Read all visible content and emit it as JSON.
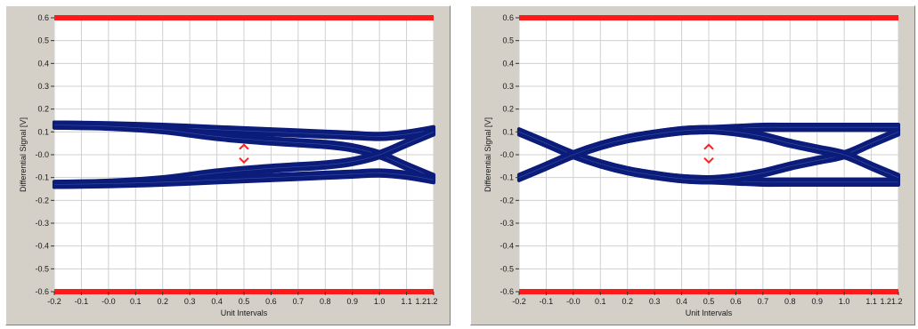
{
  "chart_data": [
    {
      "type": "line",
      "title": "",
      "xlabel": "Unit Intervals",
      "ylabel": "Differential Signal  [V]",
      "xlim": [
        -0.2,
        1.2
      ],
      "ylim": [
        -0.6,
        0.6
      ],
      "grid": true,
      "x_ticks": [
        -0.2,
        -0.1,
        0.0,
        0.1,
        0.2,
        0.3,
        0.4,
        0.5,
        0.6,
        0.7,
        0.8,
        0.9,
        1.0,
        1.1,
        1.2
      ],
      "x_tick_labels": [
        "-0.2",
        "-0.1",
        "-0.0",
        "0.1",
        "0.2",
        "0.3",
        "0.4",
        "0.5",
        "0.6",
        "0.7",
        "0.8",
        "0.9",
        "1.0",
        "1.1",
        "1.21.2"
      ],
      "y_ticks": [
        0.6,
        0.5,
        0.4,
        0.3,
        0.2,
        0.1,
        0.0,
        -0.1,
        -0.2,
        -0.3,
        -0.4,
        -0.5,
        -0.6
      ],
      "y_tick_labels": [
        "0.6",
        "0.5",
        "0.4",
        "0.3",
        "0.2",
        "0.1",
        "-0.0",
        "-0.1",
        "-0.2",
        "-0.3",
        "-0.4",
        "-0.5",
        "-0.6"
      ],
      "limit_lines": [
        0.6,
        -0.6
      ],
      "eye_center": {
        "x": 0.5,
        "upper": 0.04,
        "lower": -0.03
      },
      "series": [
        {
          "x": [
            -0.2,
            0.0,
            0.2,
            0.4,
            0.6,
            0.8,
            0.9,
            1.0,
            1.1,
            1.2
          ],
          "y": [
            0.13,
            0.127,
            0.12,
            0.11,
            0.1,
            0.09,
            0.085,
            0.08,
            0.09,
            0.11
          ]
        },
        {
          "x": [
            -0.2,
            0.0,
            0.2,
            0.4,
            0.6,
            0.8,
            0.9,
            1.0,
            1.1,
            1.2
          ],
          "y": [
            0.13,
            0.125,
            0.11,
            0.08,
            0.06,
            0.045,
            0.03,
            0.0,
            -0.05,
            -0.1
          ]
        },
        {
          "x": [
            -0.2,
            0.0,
            0.2,
            0.4,
            0.6,
            0.8,
            0.9,
            1.0,
            1.1,
            1.2
          ],
          "y": [
            -0.13,
            -0.125,
            -0.11,
            -0.08,
            -0.06,
            -0.045,
            -0.03,
            0.0,
            0.05,
            0.1
          ]
        },
        {
          "x": [
            -0.2,
            0.0,
            0.2,
            0.4,
            0.6,
            0.8,
            0.9,
            1.0,
            1.1,
            1.2
          ],
          "y": [
            -0.13,
            -0.127,
            -0.12,
            -0.11,
            -0.1,
            -0.09,
            -0.085,
            -0.08,
            -0.09,
            -0.11
          ]
        }
      ]
    },
    {
      "type": "line",
      "title": "",
      "xlabel": "Unit Intervals",
      "ylabel": "Differential Signal  [V]",
      "xlim": [
        -0.2,
        1.2
      ],
      "ylim": [
        -0.6,
        0.6
      ],
      "grid": true,
      "x_ticks": [
        -0.2,
        -0.1,
        0.0,
        0.1,
        0.2,
        0.3,
        0.4,
        0.5,
        0.6,
        0.7,
        0.8,
        0.9,
        1.0,
        1.1,
        1.2
      ],
      "x_tick_labels": [
        "-0.2",
        "-0.1",
        "-0.0",
        "0.1",
        "0.2",
        "0.3",
        "0.4",
        "0.5",
        "0.6",
        "0.7",
        "0.8",
        "0.9",
        "1.0",
        "1.1",
        "1.21.2"
      ],
      "y_ticks": [
        0.6,
        0.5,
        0.4,
        0.3,
        0.2,
        0.1,
        0.0,
        -0.1,
        -0.2,
        -0.3,
        -0.4,
        -0.5,
        -0.6
      ],
      "y_tick_labels": [
        "0.6",
        "0.5",
        "0.4",
        "0.3",
        "0.2",
        "0.1",
        "-0.0",
        "-0.1",
        "-0.2",
        "-0.3",
        "-0.4",
        "-0.5",
        "-0.6"
      ],
      "limit_lines": [
        0.6,
        -0.6
      ],
      "eye_center": {
        "x": 0.5,
        "upper": 0.04,
        "lower": -0.03
      },
      "series": [
        {
          "x": [
            -0.2,
            -0.1,
            0.0,
            0.1,
            0.2,
            0.3,
            0.4,
            0.5,
            0.6,
            0.7,
            0.8,
            0.9,
            1.0,
            1.1,
            1.2
          ],
          "y": [
            0.1,
            0.05,
            0.0,
            -0.04,
            -0.07,
            -0.09,
            -0.105,
            -0.11,
            -0.115,
            -0.12,
            -0.12,
            -0.12,
            -0.12,
            -0.12,
            -0.12
          ]
        },
        {
          "x": [
            -0.2,
            -0.1,
            0.0,
            0.1,
            0.2,
            0.3,
            0.4,
            0.5,
            0.6,
            0.7,
            0.8,
            0.9,
            1.0,
            1.1,
            1.2
          ],
          "y": [
            -0.1,
            -0.05,
            0.0,
            0.04,
            0.07,
            0.09,
            0.105,
            0.11,
            0.115,
            0.12,
            0.12,
            0.12,
            0.12,
            0.12,
            0.12
          ]
        },
        {
          "x": [
            -0.2,
            -0.1,
            0.0,
            0.1,
            0.2,
            0.3,
            0.4,
            0.5,
            0.6,
            0.7,
            0.8,
            0.9,
            1.0,
            1.1,
            1.2
          ],
          "y": [
            0.1,
            0.05,
            0.0,
            -0.04,
            -0.07,
            -0.09,
            -0.105,
            -0.11,
            -0.1,
            -0.08,
            -0.05,
            -0.025,
            0.0,
            0.05,
            0.1
          ]
        },
        {
          "x": [
            -0.2,
            -0.1,
            0.0,
            0.1,
            0.2,
            0.3,
            0.4,
            0.5,
            0.6,
            0.7,
            0.8,
            0.9,
            1.0,
            1.1,
            1.2
          ],
          "y": [
            -0.1,
            -0.05,
            0.0,
            0.04,
            0.07,
            0.09,
            0.105,
            0.11,
            0.1,
            0.08,
            0.05,
            0.025,
            0.0,
            -0.05,
            -0.1
          ]
        }
      ]
    }
  ],
  "colors": {
    "trace": "#0b1c7a",
    "limit": "#ff1a1a",
    "marker": "#ff2020",
    "grid": "#d0d0d0",
    "plot_bg": "#ffffff",
    "frame": "#d4d0c8"
  }
}
